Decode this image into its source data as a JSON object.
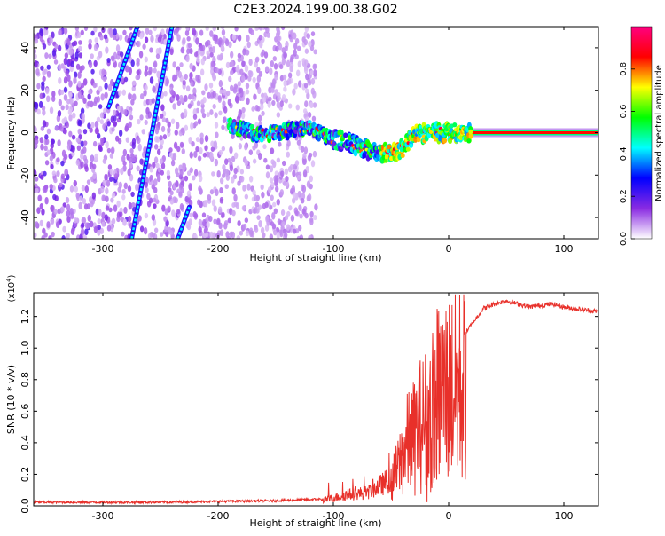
{
  "title": "C2E3.2024.199.00.38.G02",
  "chart_data": [
    {
      "type": "heatmap",
      "xlabel": "Height of straight line (km)",
      "ylabel": "Frequency (Hz)",
      "xlim": [
        -360,
        130
      ],
      "ylim": [
        -50,
        50
      ],
      "x_ticks": [
        -300,
        -200,
        -100,
        0,
        100
      ],
      "y_ticks": [
        -40,
        -20,
        0,
        20,
        40
      ],
      "colorbar": {
        "label": "Normalized spectral amplitude",
        "range": [
          0,
          1
        ],
        "ticks": [
          "0.0",
          "0.2",
          "0.4",
          "0.6",
          "0.8"
        ],
        "colors": [
          "#ffffff",
          "#8a2be2",
          "#0000ff",
          "#00ffff",
          "#00ff00",
          "#ffff00",
          "#ff0000",
          "#ff0080"
        ]
      },
      "noise_region_x": [
        -360,
        -115
      ],
      "signal_track": {
        "x": [
          -190,
          -180,
          -170,
          -160,
          -150,
          -140,
          -130,
          -120,
          -110,
          -100,
          -90,
          -80,
          -70,
          -60,
          -50,
          -40,
          -35,
          -30,
          -20,
          -10,
          0,
          10,
          20,
          130
        ],
        "y": [
          3,
          2,
          0,
          -1,
          0,
          1,
          2,
          2,
          -1,
          -3,
          -4,
          -6,
          -8,
          -9,
          -10,
          -7,
          -4,
          -1,
          0,
          0,
          0,
          0,
          0,
          0
        ]
      },
      "streaks": [
        {
          "x": [
            -275,
            -240
          ],
          "y": [
            -50,
            50
          ]
        },
        {
          "x": [
            -295,
            -270
          ],
          "y": [
            12,
            50
          ]
        },
        {
          "x": [
            -235,
            -225
          ],
          "y": [
            -50,
            -35
          ]
        }
      ]
    },
    {
      "type": "line",
      "xlabel": "Height of straight line (km)",
      "ylabel": "SNR (10 * v/v)",
      "y_multiplier": "(x10",
      "y_multiplier_exp": "4",
      "y_multiplier_close": ")",
      "xlim": [
        -360,
        130
      ],
      "ylim": [
        0,
        1.35
      ],
      "x_ticks": [
        -300,
        -200,
        -100,
        0,
        100
      ],
      "y_ticks": [
        "0.0",
        "0.2",
        "0.4",
        "0.6",
        "0.8",
        "1.0",
        "1.2"
      ],
      "color": "#e8302a",
      "series_outline": {
        "x": [
          -360,
          -250,
          -150,
          -110,
          -90,
          -70,
          -60,
          -50,
          -45,
          -40,
          -35,
          -30,
          -25,
          -20,
          -15,
          -10,
          -5,
          0,
          10,
          20,
          30,
          40,
          50,
          60,
          70,
          80,
          90,
          100,
          110,
          120,
          130
        ],
        "y": [
          0.02,
          0.02,
          0.03,
          0.04,
          0.08,
          0.1,
          0.15,
          0.2,
          0.3,
          0.45,
          0.55,
          0.6,
          0.7,
          0.75,
          0.8,
          0.95,
          1.0,
          1.02,
          1.05,
          1.15,
          1.25,
          1.28,
          1.3,
          1.28,
          1.26,
          1.27,
          1.28,
          1.26,
          1.25,
          1.24,
          1.23
        ]
      }
    }
  ]
}
